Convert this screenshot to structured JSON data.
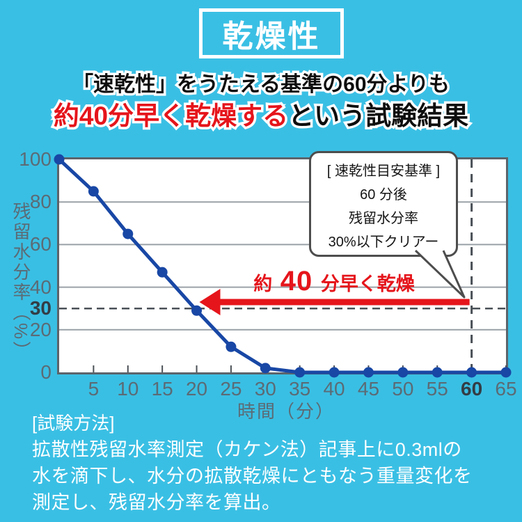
{
  "colors": {
    "background": "#3abfe4",
    "accent_red": "#e5151b",
    "line_blue": "#1847a5",
    "axis_gray": "#5b6b75"
  },
  "title_badge": {
    "text": "乾燥性"
  },
  "headline": {
    "line1": "「速乾性」をうたえる基準の60分よりも",
    "line2_red": "約40分早く乾燥する",
    "line2_black": "という試験結果"
  },
  "chart_data": {
    "type": "line",
    "title": "",
    "x": [
      0,
      5,
      10,
      15,
      20,
      25,
      30,
      35,
      40,
      45,
      50,
      55,
      60,
      65
    ],
    "series": [
      {
        "name": "残留水分率",
        "values": [
          100,
          85,
          65,
          47,
          29,
          12,
          2,
          0,
          0,
          0,
          0,
          0,
          0,
          0
        ]
      }
    ],
    "xlabel": "時間（分）",
    "ylabel": "残留水分率（%）",
    "xlim": [
      0,
      65
    ],
    "ylim": [
      0,
      100
    ],
    "x_ticks": [
      5,
      10,
      15,
      20,
      25,
      30,
      35,
      40,
      45,
      50,
      55,
      60,
      65
    ],
    "y_ticks": [
      100,
      80,
      60,
      40,
      30,
      20,
      0
    ],
    "bold_x_tick": 60,
    "bold_y_tick": 30,
    "gridlines_y": [
      20,
      40,
      60,
      80
    ],
    "dashed_y": 30,
    "dashed_x": 60,
    "grid": true,
    "legend_position": "none",
    "line_color": "#1847a5"
  },
  "annotation": {
    "arrow_label_prefix": "約",
    "arrow_label_number": "40",
    "arrow_label_suffix": "分早く乾燥",
    "color": "#e5151b",
    "arrow_from_minute": 59.7,
    "arrow_to_minute": 20.4,
    "arrow_y_percent": 33
  },
  "callout": {
    "lines": [
      "[ 速乾性目安基準 ]",
      "60 分後",
      "残留水分率",
      "30%以下クリアー"
    ]
  },
  "method": {
    "heading": "[試験方法]",
    "body_lines": [
      "拡散性残留水率測定（カケン法）記事上に0.3mlの",
      "水を滴下し、水分の拡散乾燥にともなう重量変化を",
      "測定し、残留水分率を算出。"
    ]
  }
}
